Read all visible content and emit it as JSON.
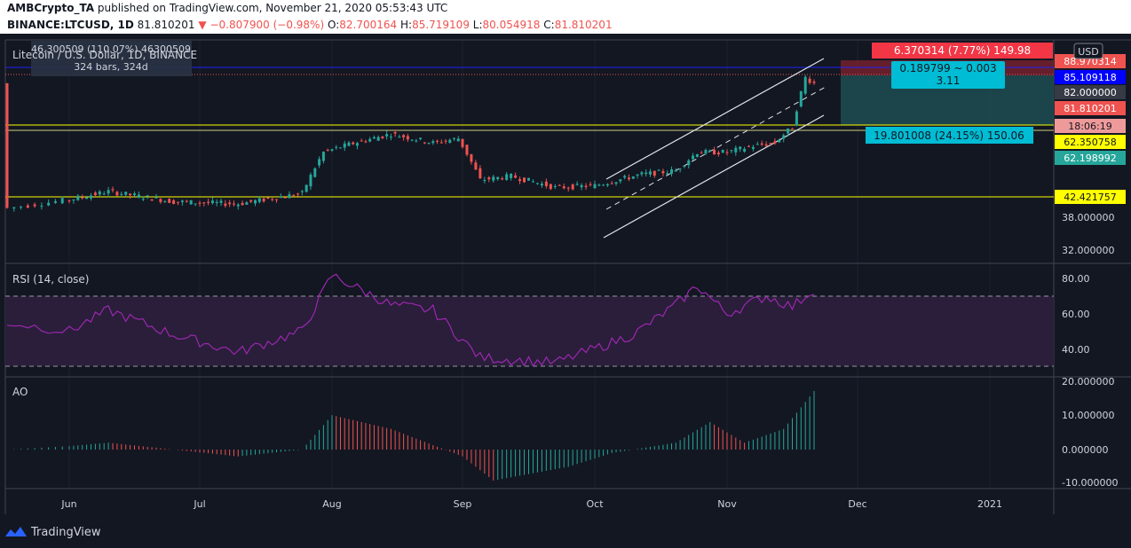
{
  "header": {
    "publisher": "AMBCrypto_TA",
    "published_text": "published on TradingView.com, November 21, 2020 05:53:43 UTC",
    "symbol": "BINANCE:LTCUSD, 1D",
    "last": "81.810201",
    "change": "−0.807900 (−0.98%)",
    "o_label": "O:",
    "o": "82.700164",
    "h_label": "H:",
    "h": "85.719109",
    "l_label": "L:",
    "l": "80.054918",
    "c_label": "C:",
    "c": "81.810201"
  },
  "chart_title": "Litecoin / U.S. Dollar, 1D, BINANCE",
  "measure_box": {
    "line1": "46.300509 (110.07%) 46300509",
    "line2": "324 bars, 324d"
  },
  "currency": "USD",
  "price_labels": [
    {
      "text": "88.970314",
      "bg": "#ef5350",
      "fg": "#ffffff"
    },
    {
      "text": "85.109118",
      "bg": "#0000ff",
      "fg": "#ffffff"
    },
    {
      "text": "82.000000",
      "bg": "#363a45",
      "fg": "#ffffff"
    },
    {
      "text": "81.810201",
      "bg": "#ef5350",
      "fg": "#ffffff"
    },
    {
      "text": "18:06:19",
      "bg": "#ef9a9a",
      "fg": "#131722"
    },
    {
      "text": "62.350758",
      "bg": "#ffff00",
      "fg": "#131722"
    },
    {
      "text": "62.198992",
      "bg": "#26a69a",
      "fg": "#ffffff"
    },
    {
      "text": "42.421757",
      "bg": "#ffff00",
      "fg": "#131722"
    }
  ],
  "price_ticks": [
    "38.000000",
    "32.000000"
  ],
  "position": {
    "target_label": "6.370314 (7.77%) 149.98",
    "mid_line1": "0.189799 ~ 0.003",
    "mid_line2": "3.11",
    "stop_label": "19.801008 (24.15%) 150.06"
  },
  "rsi": {
    "label": "RSI (14, close)",
    "ticks": [
      "80.00",
      "60.00",
      "40.00"
    ]
  },
  "ao": {
    "label": "AO",
    "ticks": [
      "20.000000",
      "10.000000",
      "0.000000",
      "-10.000000"
    ]
  },
  "time_axis": [
    "Jun",
    "Jul",
    "Aug",
    "Sep",
    "Oct",
    "Nov",
    "Dec",
    "2021"
  ],
  "brand": "TradingView",
  "colors": {
    "bg": "#131722",
    "up": "#26a69a",
    "down": "#ef5350",
    "rsi": "#9c27b0",
    "yellow": "#ffff00"
  },
  "chart_data": {
    "type": "candlestick",
    "price_points": [
      [
        "May 23",
        40.5
      ],
      [
        "Jun 10",
        44.5
      ],
      [
        "Jun 25",
        42.0
      ],
      [
        "Jul 10",
        41.5
      ],
      [
        "Jul 25",
        44.0
      ],
      [
        "Jul 30",
        55.5
      ],
      [
        "Aug 5",
        58.0
      ],
      [
        "Aug 15",
        61.5
      ],
      [
        "Aug 25",
        58.5
      ],
      [
        "Aug 31",
        60.0
      ],
      [
        "Sep 5",
        47.5
      ],
      [
        "Sep 12",
        48.5
      ],
      [
        "Sep 22",
        45.5
      ],
      [
        "Oct 1",
        46.0
      ],
      [
        "Oct 12",
        49.0
      ],
      [
        "Oct 20",
        50.0
      ],
      [
        "Oct 25",
        55.5
      ],
      [
        "Nov 1",
        55.5
      ],
      [
        "Nov 7",
        57.5
      ],
      [
        "Nov 12",
        58.5
      ],
      [
        "Nov 16",
        64.0
      ],
      [
        "Nov 19",
        84.5
      ],
      [
        "Nov 21",
        81.81
      ]
    ],
    "horizontal_levels": [
      62.350758,
      42.421757,
      85.109118
    ],
    "rsi_values": [
      [
        "May 23",
        55
      ],
      [
        "Jun 1",
        50
      ],
      [
        "Jun 10",
        62
      ],
      [
        "Jun 25",
        48
      ],
      [
        "Jul 10",
        38
      ],
      [
        "Jul 25",
        50
      ],
      [
        "Aug 1",
        82
      ],
      [
        "Aug 15",
        65
      ],
      [
        "Aug 25",
        62
      ],
      [
        "Sep 5",
        35
      ],
      [
        "Sep 22",
        32
      ],
      [
        "Oct 10",
        48
      ],
      [
        "Oct 20",
        65
      ],
      [
        "Oct 25",
        76
      ],
      [
        "Nov 1",
        60
      ],
      [
        "Nov 10",
        70
      ],
      [
        "Nov 16",
        64
      ],
      [
        "Nov 21",
        74
      ]
    ],
    "ao_values": [
      [
        "May 23",
        0.0
      ],
      [
        "Jun 10",
        2.0
      ],
      [
        "Jul 10",
        -2.0
      ],
      [
        "Jul 25",
        0.0
      ],
      [
        "Aug 1",
        10.0
      ],
      [
        "Aug 15",
        6.0
      ],
      [
        "Sep 1",
        -2.0
      ],
      [
        "Sep 8",
        -9.0
      ],
      [
        "Sep 25",
        -5.0
      ],
      [
        "Oct 5",
        -1.0
      ],
      [
        "Oct 20",
        2.0
      ],
      [
        "Oct 28",
        8.0
      ],
      [
        "Nov 5",
        2.0
      ],
      [
        "Nov 14",
        6.0
      ],
      [
        "Nov 21",
        17.0
      ]
    ]
  }
}
